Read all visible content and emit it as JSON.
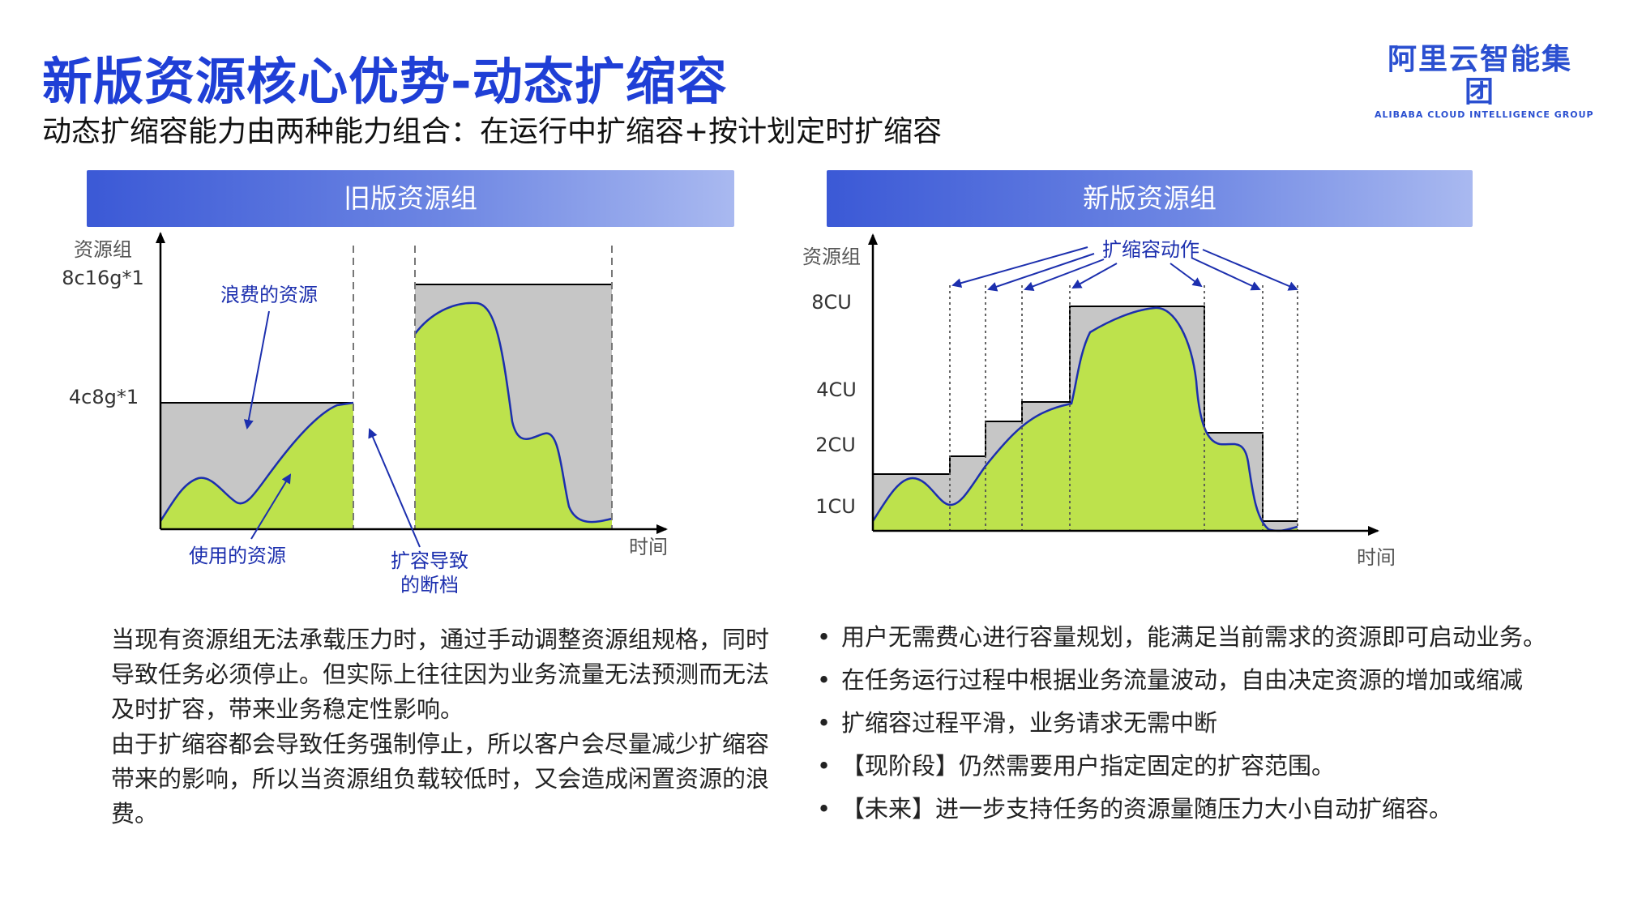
{
  "title": "新版资源核心优势-动态扩缩容",
  "subtitle": "动态扩缩容能力由两种能力组合：在运行中扩缩容+按计划定时扩缩容",
  "logo": {
    "cn": "阿里云智能集团",
    "en": "ALIBABA CLOUD INTELLIGENCE GROUP"
  },
  "left_panel": {
    "header": "旧版资源组",
    "y_axis_label": "资源组",
    "x_axis_label": "时间",
    "y_ticks": [
      "8c16g*1",
      "4c8g*1"
    ],
    "annotations": {
      "wasted": "浪费的资源",
      "used": "使用的资源",
      "gap_line1": "扩容导致",
      "gap_line2": "的断档"
    },
    "description": [
      "当现有资源组无法承载压力时，通过手动调整资源组规格，同时导致任务必须停止。但实际上往往因为业务流量无法预测而无法及时扩容，带来业务稳定性影响。",
      "由于扩缩容都会导致任务强制停止，所以客户会尽量减少扩缩容带来的影响，所以当资源组负载较低时，又会造成闲置资源的浪费。"
    ]
  },
  "right_panel": {
    "header": "新版资源组",
    "y_axis_label": "资源组",
    "x_axis_label": "时间",
    "y_ticks": [
      "8CU",
      "4CU",
      "2CU",
      "1CU"
    ],
    "annotation": "扩缩容动作",
    "bullets": [
      "用户无需费心进行容量规划，能满足当前需求的资源即可启动业务。",
      "在任务运行过程中根据业务流量波动，自由决定资源的增加或缩减",
      "扩缩容过程平滑，业务请求无需中断",
      "【现阶段】仍然需要用户指定固定的扩容范围。",
      "【未来】进一步支持任务的资源量随压力大小自动扩缩容。"
    ]
  },
  "colors": {
    "title": "#1f3fd6",
    "used_fill": "#bde24c",
    "wasted_fill": "#c6c6c6",
    "curve": "#1c2fae",
    "arrow": "#1c2fae"
  }
}
